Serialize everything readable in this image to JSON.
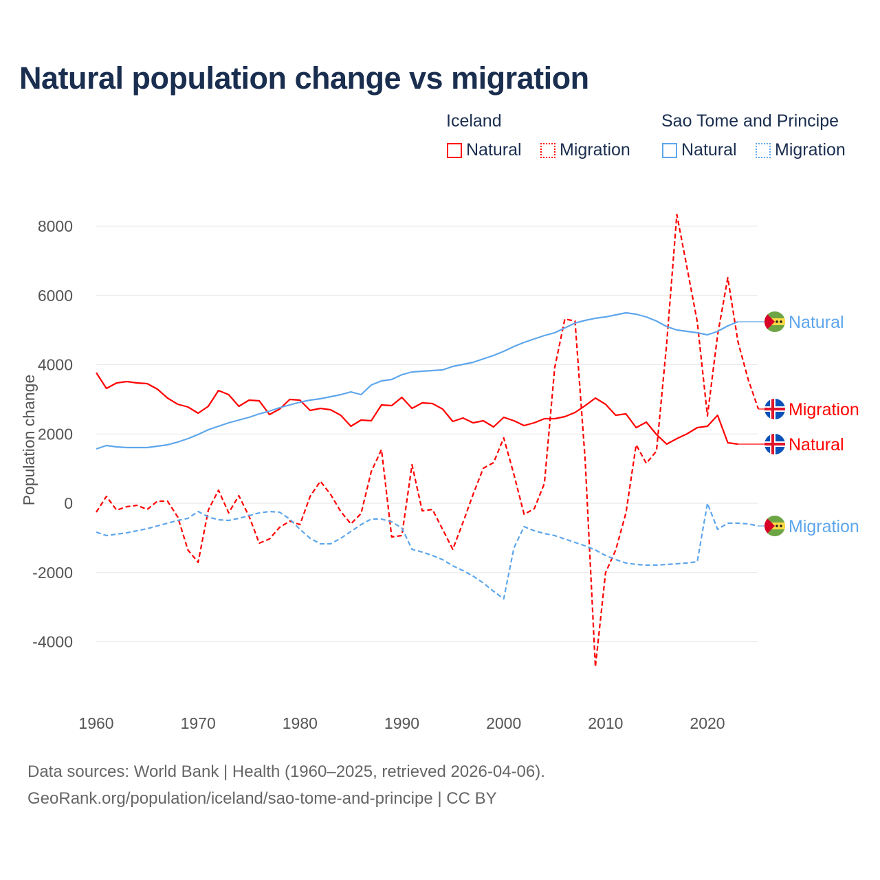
{
  "chart_data": {
    "type": "line",
    "title": "Natural population change vs migration",
    "ylabel": "Population change",
    "xlabel": "",
    "xlim": [
      1960,
      2025
    ],
    "ylim": [
      -5000,
      8700
    ],
    "x_ticks": [
      1960,
      1970,
      1980,
      1990,
      2000,
      2010,
      2020
    ],
    "y_ticks": [
      8000,
      6000,
      4000,
      2000,
      0,
      -2000,
      -4000
    ],
    "y_tick_labels": [
      "8000",
      "6000",
      "4000",
      "2000",
      "0",
      "-2000",
      "-4000"
    ],
    "grid": true,
    "legend": {
      "placement": "top-right",
      "groups": [
        {
          "country": "Iceland",
          "items": [
            "Natural",
            "Migration"
          ]
        },
        {
          "country": "Sao Tome and Principe",
          "items": [
            "Natural",
            "Migration"
          ]
        }
      ]
    },
    "series": [
      {
        "name": "Natural",
        "country": "Iceland",
        "color": "#ff0000",
        "dash": false,
        "flag": "iceland-flag",
        "start_year": 1960,
        "values": [
          3772,
          3315,
          3474,
          3514,
          3474,
          3454,
          3295,
          3037,
          2859,
          2779,
          2600,
          2799,
          3256,
          3137,
          2799,
          2978,
          2958,
          2561,
          2720,
          2998,
          2978,
          2680,
          2740,
          2700,
          2541,
          2224,
          2402,
          2382,
          2839,
          2819,
          3057,
          2740,
          2899,
          2879,
          2720,
          2362,
          2462,
          2323,
          2382,
          2204,
          2482,
          2382,
          2243,
          2323,
          2442,
          2442,
          2501,
          2621,
          2819,
          3037,
          2859,
          2541,
          2581,
          2184,
          2343,
          1985,
          1707,
          1866,
          2005,
          2184,
          2224,
          2541,
          1747,
          1707
        ]
      },
      {
        "name": "Migration",
        "country": "Iceland",
        "color": "#ff0000",
        "dash": true,
        "flag": "iceland-flag",
        "start_year": 1960,
        "values": [
          -258,
          199,
          -199,
          -99,
          -60,
          -179,
          60,
          60,
          -397,
          -1350,
          -1707,
          -199,
          377,
          -278,
          218,
          -377,
          -1151,
          -1032,
          -695,
          -516,
          -615,
          199,
          635,
          258,
          -238,
          -596,
          -298,
          913,
          1549,
          -973,
          -933,
          1112,
          -218,
          -179,
          -754,
          -1330,
          -556,
          258,
          1012,
          1171,
          1886,
          834,
          -318,
          -159,
          576,
          3911,
          5321,
          5261,
          1231,
          -4725,
          -2005,
          -1350,
          -278,
          1688,
          1151,
          1509,
          4606,
          8338,
          6790,
          5241,
          2521,
          4864,
          6512,
          4665,
          3574,
          2720
        ]
      },
      {
        "name": "Natural",
        "country": "Sao Tome and Principe",
        "color": "#5ea6eb",
        "dash": false,
        "flag": "sao-tome-flag",
        "start_year": 1960,
        "values": [
          1568,
          1668,
          1628,
          1608,
          1608,
          1608,
          1648,
          1688,
          1767,
          1866,
          1985,
          2124,
          2224,
          2323,
          2402,
          2482,
          2581,
          2660,
          2760,
          2839,
          2918,
          2978,
          3018,
          3077,
          3137,
          3216,
          3137,
          3415,
          3534,
          3574,
          3713,
          3792,
          3812,
          3832,
          3852,
          3951,
          4010,
          4070,
          4169,
          4268,
          4387,
          4526,
          4646,
          4745,
          4844,
          4924,
          5063,
          5202,
          5281,
          5341,
          5380,
          5440,
          5499,
          5460,
          5380,
          5261,
          5102,
          5003,
          4963,
          4924,
          4864,
          4963,
          5122,
          5241
        ]
      },
      {
        "name": "Migration",
        "country": "Sao Tome and Principe",
        "color": "#5ea6eb",
        "dash": true,
        "flag": "sao-tome-flag",
        "start_year": 1960,
        "values": [
          -834,
          -933,
          -893,
          -854,
          -794,
          -735,
          -655,
          -576,
          -496,
          -437,
          -238,
          -397,
          -476,
          -496,
          -437,
          -357,
          -278,
          -238,
          -258,
          -457,
          -754,
          -1012,
          -1171,
          -1171,
          -1012,
          -814,
          -615,
          -457,
          -457,
          -536,
          -715,
          -1330,
          -1410,
          -1509,
          -1628,
          -1807,
          -1945,
          -2104,
          -2303,
          -2541,
          -2760,
          -1290,
          -675,
          -794,
          -874,
          -933,
          -1032,
          -1132,
          -1231,
          -1350,
          -1509,
          -1628,
          -1727,
          -1767,
          -1787,
          -1787,
          -1767,
          -1747,
          -1727,
          -1688,
          0,
          -754,
          -576,
          -576,
          -596,
          -655
        ]
      }
    ]
  },
  "legend_labels": {
    "iceland": "Iceland",
    "stp": "Sao Tome and Principe",
    "natural": "Natural",
    "migration": "Migration"
  },
  "footer": {
    "line1": "Data sources: World Bank | Health (1960–2025, retrieved 2026-04-06).",
    "line2": "GeoRank.org/population/iceland/sao-tome-and-principe | CC BY"
  }
}
